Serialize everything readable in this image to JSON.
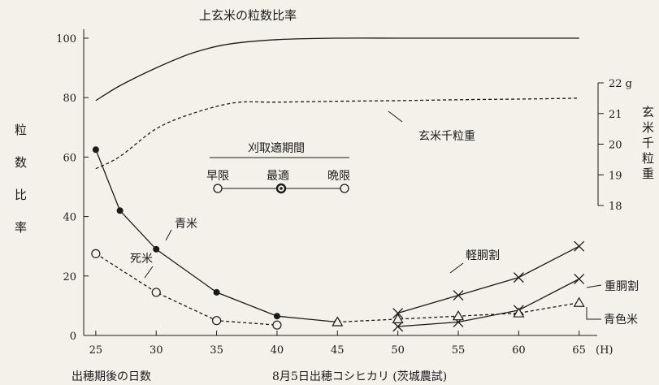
{
  "chart_data": {
    "type": "line",
    "xlabel": "出穂期後の日数",
    "x_unit_label": "(H)",
    "footnote": "8月5日出穂コシヒカリ (茨城農試)",
    "ylabel_left": [
      "粒",
      "数",
      "比",
      "率"
    ],
    "ylabel_right": [
      "玄",
      "米",
      "千",
      "粒",
      "重"
    ],
    "x_ticks": [
      25,
      30,
      35,
      40,
      45,
      50,
      55,
      60,
      65
    ],
    "y_ticks": [
      0,
      20,
      40,
      60,
      80,
      100
    ],
    "y_right_ticks": [
      "18",
      "19",
      "20",
      "21",
      "22 g"
    ],
    "xlim": [
      24,
      66.5
    ],
    "ylim": [
      0,
      103
    ],
    "y_right_range": [
      18,
      22
    ],
    "series": [
      {
        "name": "上玄米の粒数比率",
        "style": "solid",
        "axis": "left",
        "x": [
          25,
          27,
          30,
          33,
          36,
          40,
          45,
          50,
          55,
          60,
          65
        ],
        "y": [
          79,
          84,
          90,
          95,
          98,
          99.5,
          100,
          100,
          100,
          100,
          100
        ]
      },
      {
        "name": "玄米千粒重",
        "style": "dashed",
        "axis": "right",
        "x": [
          25,
          27,
          30,
          33,
          36.5,
          40,
          45,
          50,
          55,
          60,
          65
        ],
        "y": [
          19.2,
          19.6,
          20.5,
          21.0,
          21.35,
          21.37,
          21.4,
          21.42,
          21.45,
          21.47,
          21.5
        ]
      },
      {
        "name": "青米",
        "style": "solid",
        "marker": "dot",
        "axis": "left",
        "x": [
          25,
          27,
          30,
          35,
          40,
          45
        ],
        "y": [
          62.5,
          42,
          29,
          14.5,
          6.5,
          4.5
        ]
      },
      {
        "name": "死米",
        "style": "dashed",
        "marker": "circle",
        "axis": "left",
        "x": [
          25,
          30,
          35,
          40
        ],
        "y": [
          27.5,
          14.5,
          5,
          3.5
        ]
      },
      {
        "name": "軽胴割",
        "style": "solid",
        "marker": "x",
        "axis": "left",
        "x": [
          50,
          55,
          60,
          65
        ],
        "y": [
          7.5,
          13.5,
          19.5,
          30
        ]
      },
      {
        "name": "重胴割",
        "style": "solid",
        "marker": "x",
        "axis": "left",
        "x": [
          50,
          55,
          60,
          65
        ],
        "y": [
          3,
          4.5,
          8.5,
          19
        ]
      },
      {
        "name": "青色米",
        "style": "dashed",
        "marker": "triangle",
        "axis": "left",
        "x": [
          45,
          50,
          55,
          60,
          65
        ],
        "y": [
          4.5,
          5.5,
          6.5,
          7.5,
          11
        ]
      }
    ],
    "legend": {
      "title": "刈取適期間",
      "items": [
        "早限",
        "最適",
        "晩限"
      ]
    }
  }
}
